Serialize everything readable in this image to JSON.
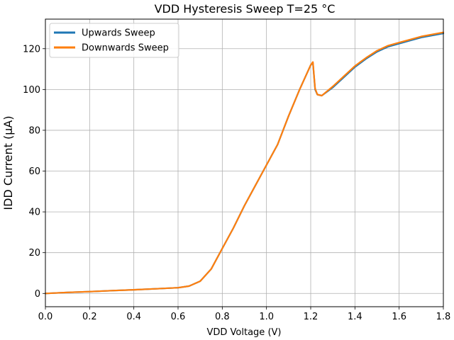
{
  "chart_data": {
    "type": "line",
    "title": "VDD Hysteresis Sweep T=25 °C",
    "xlabel": "VDD Voltage (V)",
    "ylabel": "IDD Current (µA)",
    "xlim": [
      0.0,
      1.8
    ],
    "ylim": [
      -6.5,
      134.5
    ],
    "x_ticks": [
      "0.0",
      "0.2",
      "0.4",
      "0.6",
      "0.8",
      "1.0",
      "1.2",
      "1.4",
      "1.6",
      "1.8"
    ],
    "y_ticks": [
      "0",
      "20",
      "40",
      "60",
      "80",
      "100",
      "120"
    ],
    "grid": true,
    "legend_position": "top-left",
    "series": [
      {
        "name": "Upwards Sweep",
        "color": "#1f77b4",
        "x": [
          0.0,
          0.1,
          0.2,
          0.3,
          0.4,
          0.5,
          0.6,
          0.65,
          0.7,
          0.75,
          0.8,
          0.85,
          0.9,
          0.95,
          1.0,
          1.05,
          1.1,
          1.15,
          1.2,
          1.21,
          1.22,
          1.23,
          1.25,
          1.3,
          1.35,
          1.4,
          1.45,
          1.5,
          1.55,
          1.6,
          1.65,
          1.7,
          1.75,
          1.8
        ],
        "y": [
          0.0,
          0.5,
          0.9,
          1.4,
          1.8,
          2.3,
          2.8,
          3.6,
          6.0,
          12.0,
          22.0,
          32.0,
          43.0,
          53.0,
          63.0,
          73.0,
          87.0,
          100.0,
          112.0,
          113.0,
          100.0,
          97.5,
          97.0,
          101.0,
          106.0,
          111.0,
          115.0,
          118.5,
          121.0,
          122.5,
          124.0,
          125.5,
          126.5,
          127.5
        ]
      },
      {
        "name": "Downwards Sweep",
        "color": "#ff7f0e",
        "x": [
          0.0,
          0.1,
          0.2,
          0.3,
          0.4,
          0.5,
          0.6,
          0.65,
          0.7,
          0.75,
          0.8,
          0.85,
          0.9,
          0.95,
          1.0,
          1.05,
          1.1,
          1.15,
          1.2,
          1.21,
          1.22,
          1.23,
          1.25,
          1.3,
          1.35,
          1.4,
          1.45,
          1.5,
          1.55,
          1.6,
          1.65,
          1.7,
          1.75,
          1.8
        ],
        "y": [
          0.0,
          0.5,
          0.9,
          1.4,
          1.8,
          2.3,
          2.8,
          3.6,
          6.0,
          12.0,
          22.0,
          32.0,
          43.0,
          53.0,
          63.0,
          73.0,
          87.0,
          100.0,
          112.0,
          113.5,
          100.5,
          97.5,
          97.0,
          101.5,
          106.5,
          111.5,
          115.5,
          119.0,
          121.5,
          123.0,
          124.5,
          126.0,
          127.0,
          128.0
        ]
      }
    ]
  }
}
